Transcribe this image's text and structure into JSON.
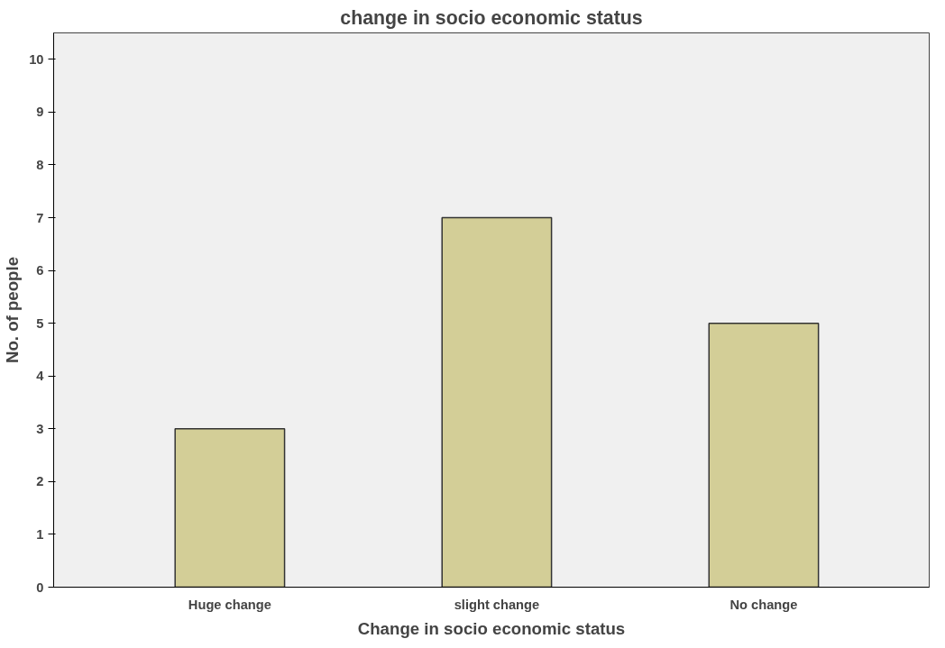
{
  "chart_data": {
    "type": "bar",
    "title": "change in socio economic status",
    "xlabel": "Change in socio economic status",
    "ylabel": "No. of people",
    "categories": [
      "Huge change",
      "slight change",
      "No change"
    ],
    "values": [
      3,
      7,
      5
    ],
    "color": "#d3ce97",
    "ylim": [
      0,
      10.5
    ],
    "yticks": [
      0,
      1,
      2,
      3,
      4,
      5,
      6,
      7,
      8,
      9,
      10
    ],
    "grid": false
  }
}
